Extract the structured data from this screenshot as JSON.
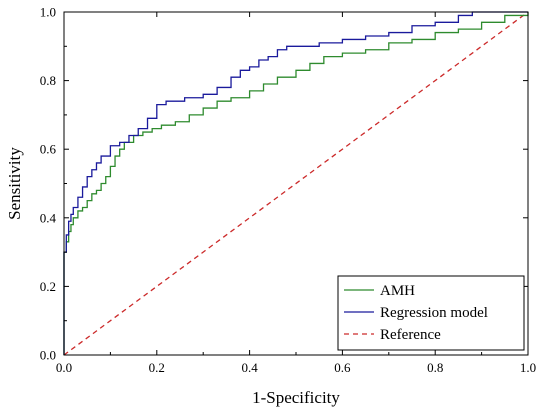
{
  "chart_data": {
    "type": "line",
    "xlabel": "1-Specificity",
    "ylabel": "Sensitivity",
    "xlim": [
      0,
      1
    ],
    "ylim": [
      0,
      1
    ],
    "xticks": [
      0.0,
      0.2,
      0.4,
      0.6,
      0.8,
      1.0
    ],
    "yticks": [
      0.0,
      0.2,
      0.4,
      0.6,
      0.8,
      1.0
    ],
    "xtick_labels": [
      "0.0",
      "0.2",
      "0.4",
      "0.6",
      "0.8",
      "1.0"
    ],
    "ytick_labels": [
      "0.0",
      "0.2",
      "0.4",
      "0.6",
      "0.8",
      "1.0"
    ],
    "grid": false,
    "legend_position": "bottom-right",
    "series": [
      {
        "name": "AMH",
        "color": "#2e8b2e",
        "style": "step",
        "x": [
          0.0,
          0.0,
          0.005,
          0.01,
          0.015,
          0.02,
          0.03,
          0.04,
          0.05,
          0.06,
          0.07,
          0.08,
          0.09,
          0.1,
          0.11,
          0.12,
          0.13,
          0.15,
          0.17,
          0.19,
          0.21,
          0.24,
          0.27,
          0.3,
          0.33,
          0.36,
          0.4,
          0.43,
          0.46,
          0.5,
          0.53,
          0.56,
          0.6,
          0.65,
          0.7,
          0.75,
          0.8,
          0.85,
          0.9,
          0.95,
          1.0
        ],
        "y": [
          0.0,
          0.3,
          0.33,
          0.36,
          0.38,
          0.4,
          0.42,
          0.43,
          0.45,
          0.47,
          0.48,
          0.5,
          0.52,
          0.55,
          0.58,
          0.6,
          0.62,
          0.64,
          0.65,
          0.66,
          0.67,
          0.68,
          0.7,
          0.72,
          0.74,
          0.75,
          0.77,
          0.79,
          0.81,
          0.83,
          0.85,
          0.87,
          0.88,
          0.89,
          0.91,
          0.92,
          0.94,
          0.95,
          0.97,
          0.99,
          1.0
        ]
      },
      {
        "name": "Regression model",
        "color": "#1a1a9c",
        "style": "step",
        "x": [
          0.0,
          0.0,
          0.005,
          0.01,
          0.015,
          0.02,
          0.03,
          0.04,
          0.05,
          0.06,
          0.07,
          0.08,
          0.1,
          0.12,
          0.14,
          0.16,
          0.18,
          0.2,
          0.22,
          0.26,
          0.3,
          0.33,
          0.36,
          0.38,
          0.4,
          0.42,
          0.44,
          0.46,
          0.48,
          0.55,
          0.6,
          0.65,
          0.7,
          0.75,
          0.8,
          0.85,
          0.88,
          0.95,
          1.0
        ],
        "y": [
          0.0,
          0.3,
          0.35,
          0.39,
          0.41,
          0.43,
          0.46,
          0.49,
          0.52,
          0.54,
          0.56,
          0.58,
          0.61,
          0.62,
          0.64,
          0.66,
          0.69,
          0.73,
          0.74,
          0.75,
          0.76,
          0.78,
          0.81,
          0.83,
          0.84,
          0.86,
          0.87,
          0.89,
          0.9,
          0.91,
          0.92,
          0.93,
          0.94,
          0.96,
          0.97,
          0.99,
          1.0,
          1.0,
          1.0
        ]
      },
      {
        "name": "Reference",
        "color": "#cc2a2a",
        "style": "dashed",
        "x": [
          0.0,
          1.0
        ],
        "y": [
          0.0,
          1.0
        ]
      }
    ]
  }
}
